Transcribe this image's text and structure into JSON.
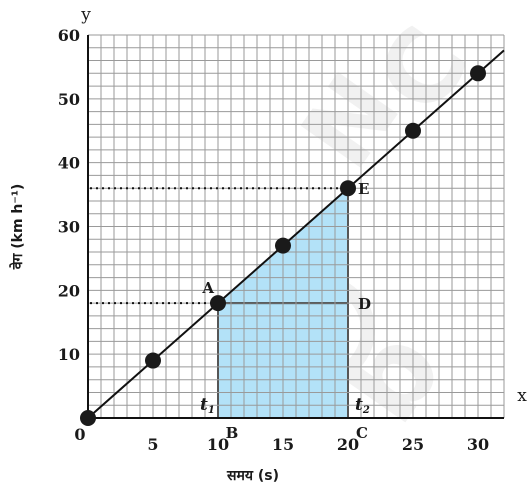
{
  "chart_data": {
    "type": "line",
    "title": "",
    "xlabel": "समय (s)",
    "ylabel": "वेग (km h⁻¹)",
    "x_axis_letter": "x",
    "y_axis_letter": "y",
    "origin_label": "0",
    "xlim": [
      0,
      32
    ],
    "ylim": [
      0,
      60
    ],
    "x_ticks": [
      0,
      5,
      10,
      15,
      20,
      25,
      30
    ],
    "x_tick_labels": [
      "0",
      "5",
      "10",
      "15",
      "20",
      "25",
      "30"
    ],
    "y_ticks": [
      10,
      20,
      30,
      40,
      50,
      60
    ],
    "y_tick_labels": [
      "10",
      "20",
      "30",
      "40",
      "50",
      "60"
    ],
    "grid": true,
    "minor_x": 1,
    "minor_y": 2,
    "line": {
      "x": [
        0,
        32
      ],
      "y": [
        0,
        57.6
      ]
    },
    "points": [
      {
        "x": 0,
        "y": 0
      },
      {
        "x": 5,
        "y": 9
      },
      {
        "x": 10,
        "y": 18
      },
      {
        "x": 15,
        "y": 27
      },
      {
        "x": 20,
        "y": 36
      },
      {
        "x": 25,
        "y": 45
      },
      {
        "x": 30,
        "y": 54
      }
    ],
    "point_labels": [
      {
        "label": "A",
        "x": 10,
        "y": 18
      },
      {
        "label": "D",
        "x": 20,
        "y": 18
      },
      {
        "label": "E",
        "x": 20,
        "y": 36
      },
      {
        "label": "B",
        "x": 10,
        "y": 0
      },
      {
        "label": "C",
        "x": 20,
        "y": 0
      }
    ],
    "time_labels": [
      {
        "label": "t",
        "sub": "1",
        "x": 10
      },
      {
        "label": "t",
        "sub": "2",
        "x": 20
      }
    ],
    "shaded_region": [
      [
        10,
        0
      ],
      [
        10,
        18
      ],
      [
        20,
        36
      ],
      [
        20,
        0
      ]
    ],
    "dotted_guides": [
      {
        "x": 20,
        "y": 36
      },
      {
        "x": 10,
        "y": 18
      }
    ],
    "colors": {
      "grid": "#9a9a9a",
      "line": "#111111",
      "marker": "#1a1a1a",
      "fill": "#b3e2f8",
      "fill_edge": "#111111"
    }
  }
}
